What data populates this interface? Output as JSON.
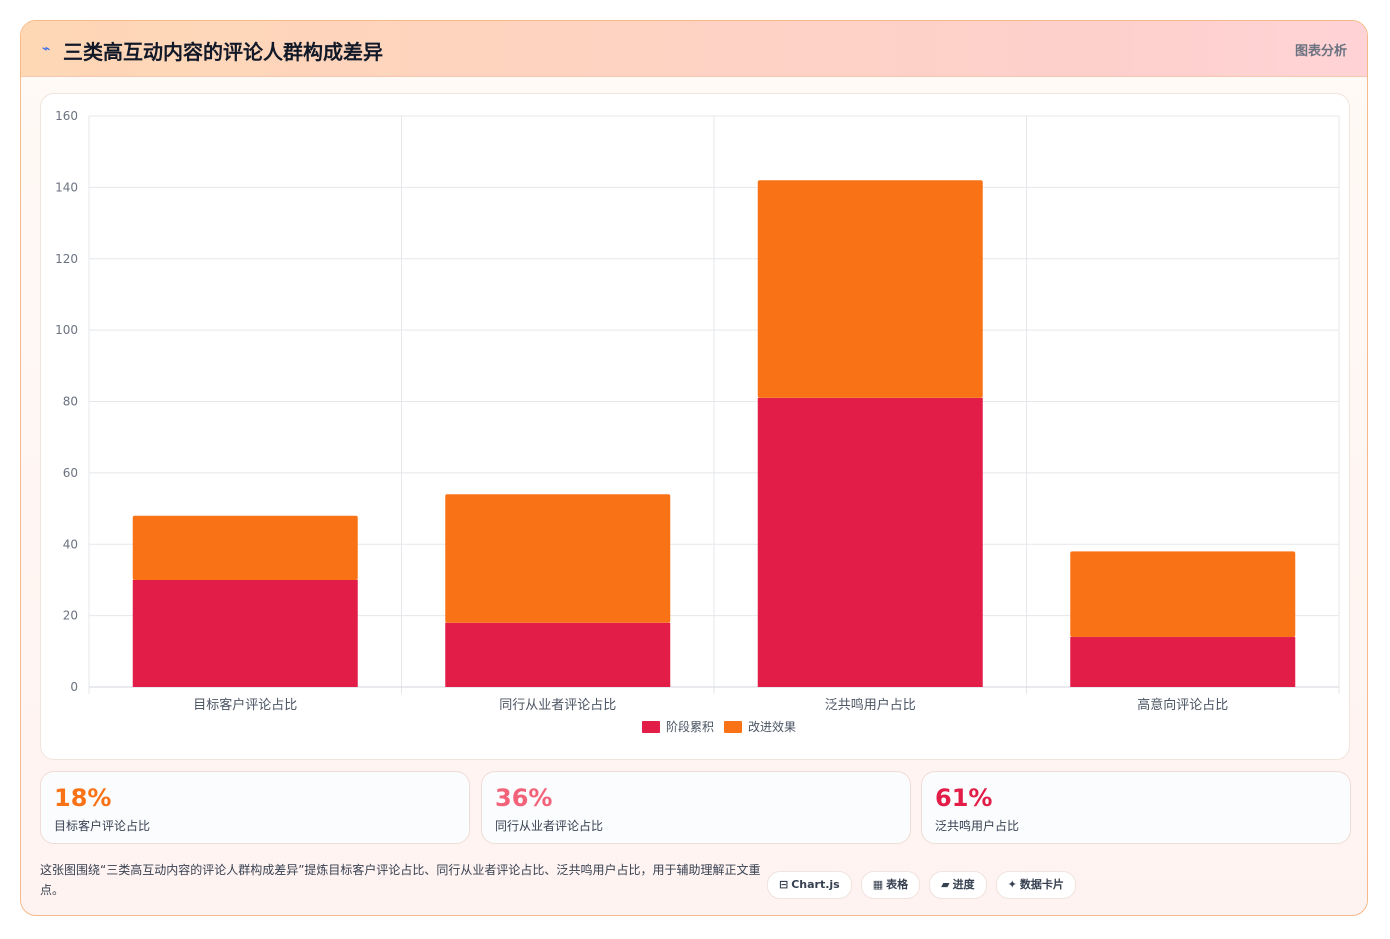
{
  "header": {
    "icon": "pulse-icon",
    "title": "三类高互动内容的评论人群构成差异",
    "tag": "图表分析"
  },
  "chart_data": {
    "type": "bar",
    "stacked": true,
    "categories": [
      "目标客户评论占比",
      "同行从业者评论占比",
      "泛共鸣用户占比",
      "高意向评论占比"
    ],
    "series": [
      {
        "name": "阶段累积",
        "color": "#e11d48",
        "values": [
          30,
          18,
          81,
          14
        ]
      },
      {
        "name": "改进效果",
        "color": "#f97316",
        "values": [
          18,
          36,
          61,
          24
        ]
      }
    ],
    "ylim": [
      0,
      160
    ],
    "yticks": [
      0,
      20,
      40,
      60,
      80,
      100,
      120,
      140,
      160
    ],
    "grid": true,
    "legend": "bottom"
  },
  "stats": [
    {
      "value": "18%",
      "label": "目标客户评论占比",
      "color": "#f97316"
    },
    {
      "value": "36%",
      "label": "同行从业者评论占比",
      "color": "#f2637a"
    },
    {
      "value": "61%",
      "label": "泛共鸣用户占比",
      "color": "#e11d48"
    }
  ],
  "note": "这张图围绕“三类高互动内容的评论人群构成差异”提炼目标客户评论占比、同行从业者评论占比、泛共鸣用户占比，用于辅助理解正文重点。",
  "chips": [
    {
      "icon": "⊟",
      "label": "Chart.js"
    },
    {
      "icon": "▦",
      "label": "表格"
    },
    {
      "icon": "▰",
      "label": "进度"
    },
    {
      "icon": "✦",
      "label": "数据卡片"
    }
  ]
}
